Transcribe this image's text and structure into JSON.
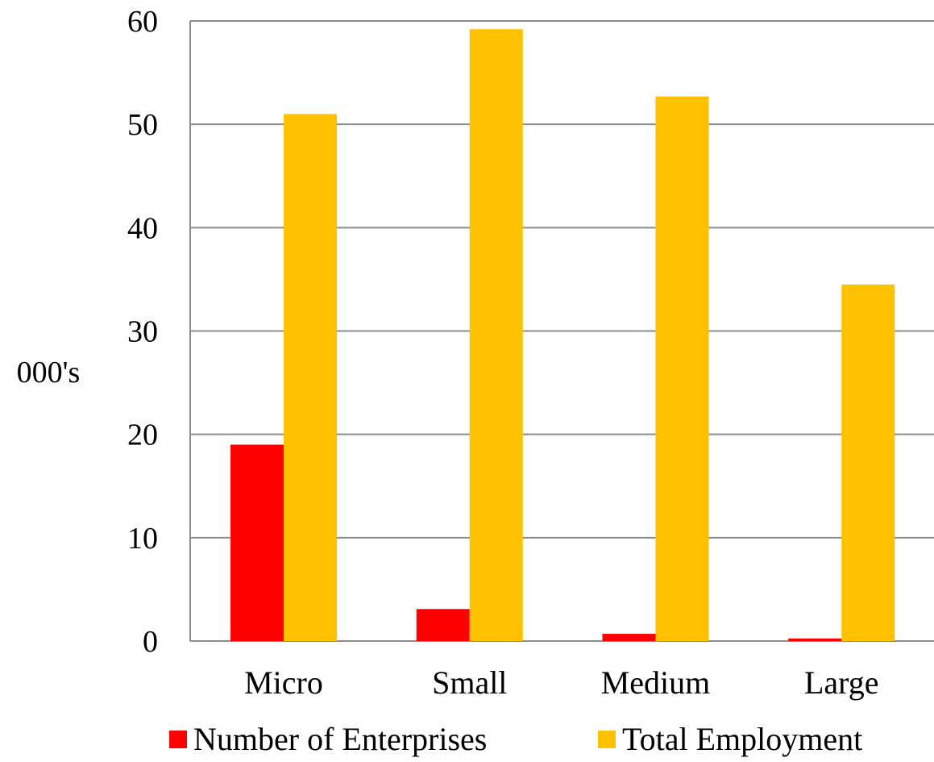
{
  "chart_data": {
    "type": "bar",
    "categories": [
      "Micro",
      "Small",
      "Medium",
      "Large"
    ],
    "series": [
      {
        "name": "Number of Enterprises",
        "color": "#ff0000",
        "values": [
          19,
          3.1,
          0.7,
          0.25
        ]
      },
      {
        "name": "Total Employment",
        "color": "#ffc000",
        "values": [
          51,
          59.2,
          52.7,
          34.5
        ]
      }
    ],
    "ylabel": "000's",
    "xlabel": "",
    "ylim": [
      0,
      60
    ],
    "yticks": [
      0,
      10,
      20,
      30,
      40,
      50,
      60
    ],
    "grid": true,
    "legend": "bottom"
  }
}
